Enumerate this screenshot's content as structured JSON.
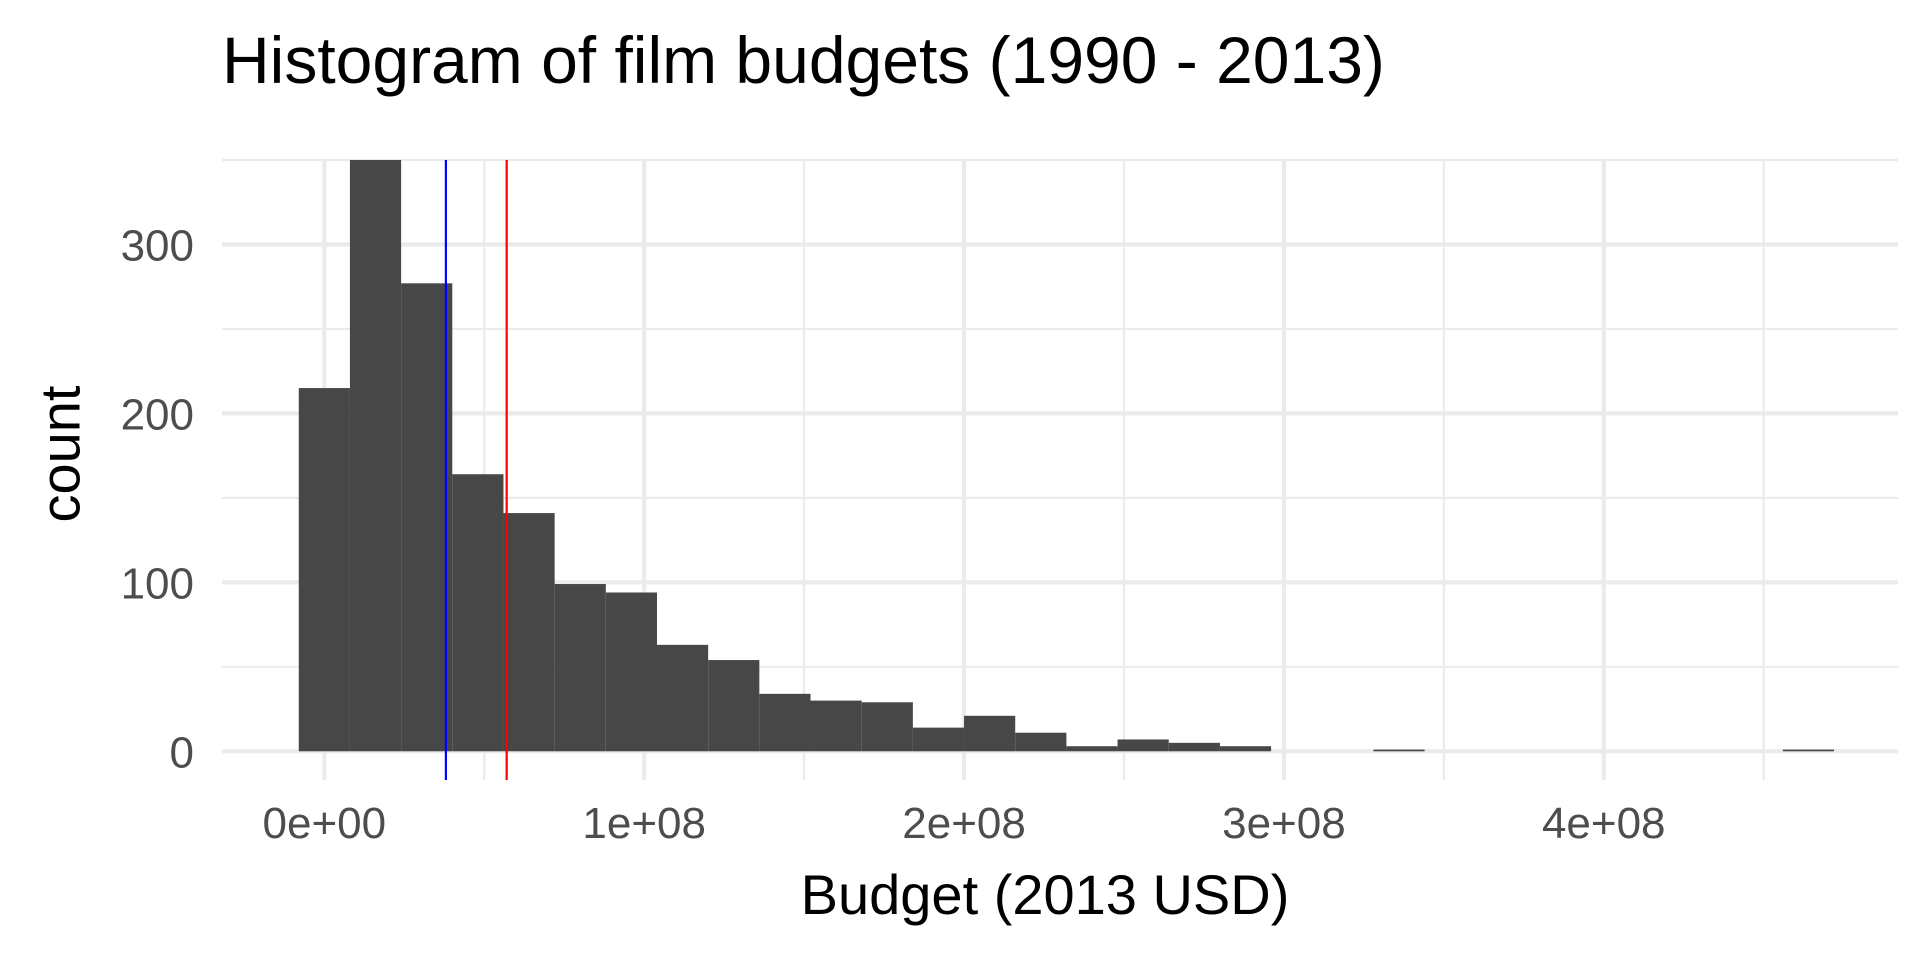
{
  "chart_data": {
    "type": "bar",
    "title": "Histogram of film budgets (1990 - 2013)",
    "xlabel": "Budget (2013 USD)",
    "ylabel": "count",
    "x_ticks": [
      0,
      100000000,
      200000000,
      300000000,
      400000000
    ],
    "x_tick_labels": [
      "0e+00",
      "1e+08",
      "2e+08",
      "3e+08",
      "4e+08"
    ],
    "y_ticks": [
      0,
      100,
      200,
      300
    ],
    "y_tick_labels": [
      "0",
      "100",
      "200",
      "300"
    ],
    "xlim": [
      -32000000,
      492000000
    ],
    "ylim": [
      -17,
      350
    ],
    "bin_width": 16000000,
    "bins": [
      {
        "x_start": -8000000,
        "count": 215
      },
      {
        "x_start": 8000000,
        "count": 350
      },
      {
        "x_start": 24000000,
        "count": 277
      },
      {
        "x_start": 40000000,
        "count": 164
      },
      {
        "x_start": 56000000,
        "count": 141
      },
      {
        "x_start": 72000000,
        "count": 99
      },
      {
        "x_start": 88000000,
        "count": 94
      },
      {
        "x_start": 104000000,
        "count": 63
      },
      {
        "x_start": 120000000,
        "count": 54
      },
      {
        "x_start": 136000000,
        "count": 34
      },
      {
        "x_start": 152000000,
        "count": 30
      },
      {
        "x_start": 168000000,
        "count": 29
      },
      {
        "x_start": 184000000,
        "count": 14
      },
      {
        "x_start": 200000000,
        "count": 21
      },
      {
        "x_start": 216000000,
        "count": 11
      },
      {
        "x_start": 232000000,
        "count": 3
      },
      {
        "x_start": 248000000,
        "count": 7
      },
      {
        "x_start": 264000000,
        "count": 5
      },
      {
        "x_start": 280000000,
        "count": 3
      },
      {
        "x_start": 296000000,
        "count": 0
      },
      {
        "x_start": 312000000,
        "count": 0
      },
      {
        "x_start": 328000000,
        "count": 1
      },
      {
        "x_start": 344000000,
        "count": 0
      },
      {
        "x_start": 360000000,
        "count": 0
      },
      {
        "x_start": 376000000,
        "count": 0
      },
      {
        "x_start": 392000000,
        "count": 0
      },
      {
        "x_start": 408000000,
        "count": 0
      },
      {
        "x_start": 424000000,
        "count": 0
      },
      {
        "x_start": 440000000,
        "count": 0
      },
      {
        "x_start": 456000000,
        "count": 1
      }
    ],
    "reference_lines": [
      {
        "x": 38000000,
        "color": "#0000ff"
      },
      {
        "x": 57000000,
        "color": "#ff0000"
      }
    ],
    "bar_color": "#474747",
    "grid": true,
    "legend": "none"
  }
}
